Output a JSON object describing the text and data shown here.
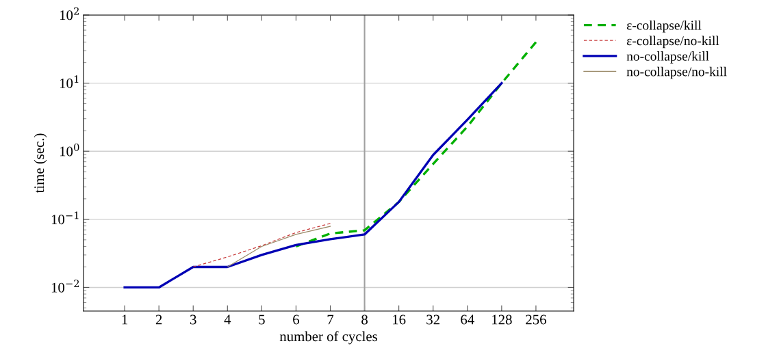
{
  "chart_data": {
    "type": "line",
    "xlabel": "number of cycles",
    "ylabel": "time (sec.)",
    "categories": [
      "1",
      "2",
      "3",
      "4",
      "5",
      "6",
      "7",
      "8",
      "16",
      "32",
      "64",
      "128",
      "256"
    ],
    "series": [
      {
        "name": "ε-collapse/kill",
        "color": "#00b000",
        "line_style": "dashed",
        "values": [
          null,
          null,
          null,
          null,
          null,
          0.04,
          0.062,
          0.069,
          0.18,
          0.65,
          2.3,
          10,
          40
        ]
      },
      {
        "name": "ε-collapse/no-kill",
        "color": "#c83c3c",
        "line_style": "dashed",
        "values": [
          null,
          null,
          0.02,
          0.028,
          0.041,
          0.064,
          0.087,
          null,
          null,
          null,
          null,
          null,
          null
        ]
      },
      {
        "name": "no-collapse/kill",
        "color": "#0000b4",
        "line_style": "solid",
        "values": [
          0.01,
          0.01,
          0.02,
          0.02,
          0.03,
          0.042,
          0.051,
          0.06,
          0.18,
          0.88,
          2.9,
          10,
          null
        ]
      },
      {
        "name": "no-collapse/no-kill",
        "color": "#9b8b6a",
        "line_style": "solid",
        "values": [
          null,
          null,
          null,
          0.02,
          0.04,
          0.06,
          0.079,
          null,
          null,
          null,
          null,
          null,
          null
        ]
      }
    ],
    "log": "y",
    "ylim": [
      0.0045,
      100
    ],
    "yticks": [
      {
        "value": 0.01,
        "label": "10$^{−2}$"
      },
      {
        "value": 0.1,
        "label": "10$^{−1}$"
      },
      {
        "value": 1,
        "label": "10$^{0}$"
      },
      {
        "value": 10,
        "label": "10$^{1}$"
      },
      {
        "value": 100,
        "label": "10$^{2}$"
      }
    ],
    "grid": "y",
    "legend": "top right",
    "marker": "none",
    "ref_lines": [
      {
        "axis": "x",
        "value": "8",
        "color": "#a0a0a0",
        "line_style": "solid"
      }
    ]
  }
}
